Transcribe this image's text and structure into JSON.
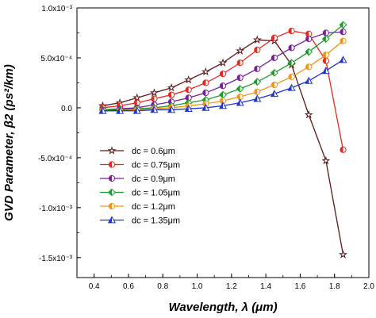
{
  "chart_data": {
    "type": "line",
    "xlabel": "Wavelength, λ (μm)",
    "ylabel": "GVD Parameter, β2 (ps²/km)",
    "xlim": [
      0.3,
      2.0
    ],
    "ylim": [
      -0.0017,
      0.001
    ],
    "x_ticks": [
      0.4,
      0.6,
      0.8,
      1.0,
      1.2,
      1.4,
      1.6,
      1.8,
      2.0
    ],
    "x_tick_labels": [
      "0.4",
      "0.6",
      "0.8",
      "1.0",
      "1.2",
      "1.4",
      "1.6",
      "1.8",
      "2.0"
    ],
    "y_ticks": [
      -0.0015,
      -0.001,
      -0.0005,
      0.0,
      0.0005,
      0.001
    ],
    "y_tick_labels": [
      "-1.5x10⁻³",
      "-1.0x10⁻³",
      "-5.0x10⁻⁴",
      "0.0",
      "5.0x10⁻⁴",
      "1.0x10⁻³"
    ],
    "grid": false,
    "legend_position": "lower-left",
    "x": [
      0.45,
      0.55,
      0.65,
      0.75,
      0.85,
      0.95,
      1.05,
      1.15,
      1.25,
      1.35,
      1.45,
      1.55,
      1.65,
      1.75,
      1.85
    ],
    "series": [
      {
        "name": "dc = 0.6μm",
        "color": "#5a1a1a",
        "marker": "star",
        "values": [
          2e-05,
          5e-05,
          0.0001,
          0.00015,
          0.0002,
          0.00028,
          0.00036,
          0.00045,
          0.00057,
          0.00068,
          0.00067,
          0.00043,
          -7e-05,
          -0.00053,
          -0.00147
        ]
      },
      {
        "name": "dc = 0.75μm",
        "color": "#e8281e",
        "marker": "half-circle",
        "values": [
          0.0,
          2e-05,
          5e-05,
          9e-05,
          0.00013,
          0.00018,
          0.00025,
          0.00034,
          0.00045,
          0.00058,
          0.0007,
          0.00077,
          0.00074,
          0.00047,
          -0.00042
        ]
      },
      {
        "name": "dc = 0.9μm",
        "color": "#7a1f9c",
        "marker": "half-circle-vertical",
        "values": [
          -2e-05,
          -1e-05,
          0.0,
          3e-05,
          6e-05,
          0.0001,
          0.00015,
          0.00022,
          0.0003,
          0.00039,
          0.0005,
          0.0006,
          0.00069,
          0.00075,
          0.00076
        ]
      },
      {
        "name": "dc = 1.05μm",
        "color": "#1c9a2a",
        "marker": "half-diamond",
        "values": [
          -2e-05,
          -2e-05,
          -1e-05,
          0.0,
          2e-05,
          5e-05,
          8e-05,
          0.00013,
          0.00019,
          0.00026,
          0.00035,
          0.00045,
          0.00056,
          0.00069,
          0.00083
        ]
      },
      {
        "name": "dc = 1.2μm",
        "color": "#f29418",
        "marker": "half-circle",
        "values": [
          -3e-05,
          -3e-05,
          -2e-05,
          -1e-05,
          0.0,
          2e-05,
          4e-05,
          7e-05,
          0.00011,
          0.00016,
          0.00023,
          0.00031,
          0.00041,
          0.00053,
          0.00067
        ]
      },
      {
        "name": "dc = 1.35μm",
        "color": "#1f36c8",
        "marker": "triangle",
        "values": [
          -3e-05,
          -3e-05,
          -3e-05,
          -2e-05,
          -2e-05,
          -1e-05,
          0.0,
          2e-05,
          5e-05,
          9e-05,
          0.00014,
          0.0002,
          0.00027,
          0.00037,
          0.00048
        ]
      }
    ]
  }
}
